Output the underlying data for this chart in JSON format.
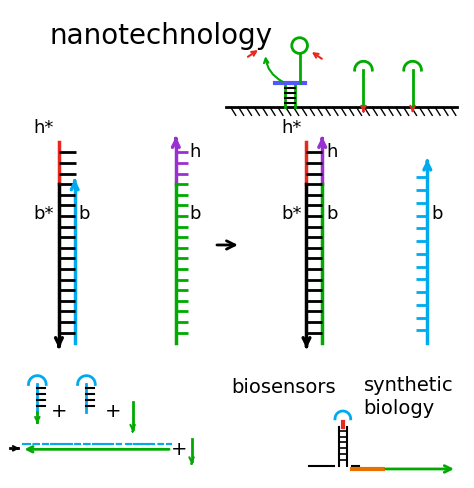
{
  "title": "nanotechnology",
  "biosensors_label": "biosensors",
  "synthetic_biology_label": "synthetic\nbiology",
  "h_star_label": "h*",
  "h_label": "h",
  "b_star_label": "b*",
  "b_label": "b",
  "colors": {
    "red": "#e8281e",
    "blue": "#00aaee",
    "green": "#00aa00",
    "purple": "#9b30d0",
    "black": "#111111",
    "dark_green": "#006600",
    "orange": "#e87000",
    "cyan": "#00bbdd"
  },
  "bg_color": "#ffffff"
}
